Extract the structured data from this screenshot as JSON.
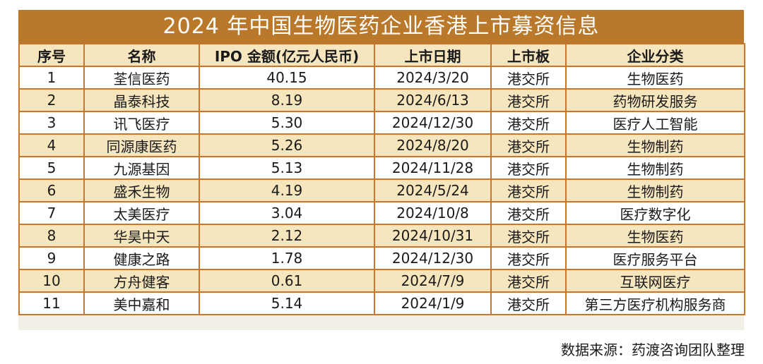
{
  "title": "2024 年中国生物医药企业香港上市募资信息",
  "headers": [
    "序号",
    "名称",
    "IPO 金额(亿元人民币)",
    "上市日期",
    "上市板",
    "企业分类"
  ],
  "rows": [
    [
      "1",
      "荃信医药",
      "40.15",
      "2024/3/20",
      "港交所",
      "生物医药"
    ],
    [
      "2",
      "晶泰科技",
      "8.19",
      "2024/6/13",
      "港交所",
      "药物研发服务"
    ],
    [
      "3",
      "讯飞医疗",
      "5.30",
      "2024/12/30",
      "港交所",
      "医疗人工智能"
    ],
    [
      "4",
      "同源康医药",
      "5.26",
      "2024/8/20",
      "港交所",
      "生物制药"
    ],
    [
      "5",
      "九源基因",
      "5.13",
      "2024/11/28",
      "港交所",
      "生物制药"
    ],
    [
      "6",
      "盛禾生物",
      "4.19",
      "2024/5/24",
      "港交所",
      "生物制药"
    ],
    [
      "7",
      "太美医疗",
      "3.04",
      "2024/10/8",
      "港交所",
      "医疗数字化"
    ],
    [
      "8",
      "华昊中天",
      "2.12",
      "2024/10/31",
      "港交所",
      "生物医药"
    ],
    [
      "9",
      "健康之路",
      "1.78",
      "2024/12/30",
      "港交所",
      "医疗服务平台"
    ],
    [
      "10",
      "方舟健客",
      "0.61",
      "2024/7/9",
      "港交所",
      "互联网医疗"
    ],
    [
      "11",
      "美中嘉和",
      "5.14",
      "2024/1/9",
      "港交所",
      "第三方医疗机构服务商"
    ]
  ],
  "source": "数据来源：药渡咨询团队整理",
  "colors": {
    "title_bg": "#b9782a",
    "border": "#c8752e",
    "stripe": "#f7e6bd"
  }
}
